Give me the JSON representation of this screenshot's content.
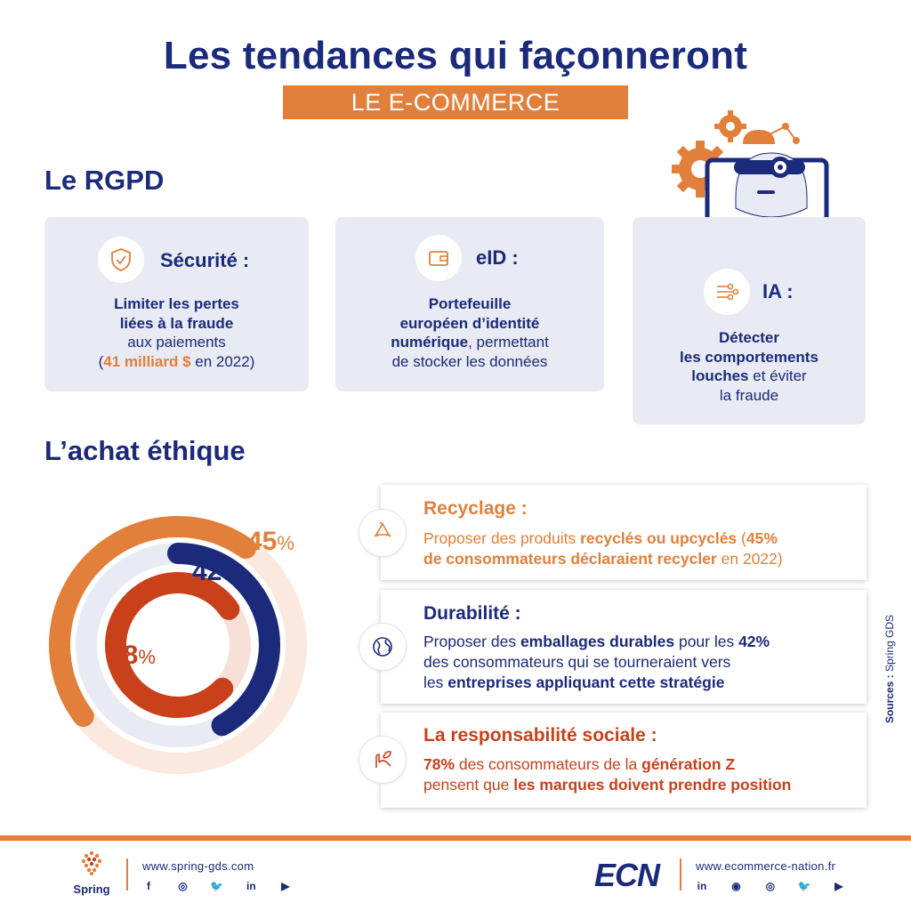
{
  "header": {
    "title": "Les tendances qui façonneront",
    "subtitle": "LE E-COMMERCE"
  },
  "rgpd": {
    "heading": "Le RGPD",
    "cards": [
      {
        "icon": "shield-check-icon",
        "title": "Sécurité :",
        "line1": "Limiter les pertes",
        "line2": "liées à la fraude",
        "line3": "aux paiements",
        "line4_pre": "(",
        "line4_highlight": "41 milliard $",
        "line4_post": " en 2022)"
      },
      {
        "icon": "wallet-icon",
        "title": "eID :",
        "line1": "Portefeuille",
        "line2": "européen d’identité",
        "line3_bold": "numérique",
        "line3_post": ", permettant",
        "line4": "de stocker les données"
      },
      {
        "icon": "circuit-icon",
        "title": "IA :",
        "line1": "Détecter",
        "line2": "les comportements",
        "line3_bold": "louches",
        "line3_post": " et éviter",
        "line4": "la fraude"
      }
    ]
  },
  "ethique": {
    "heading": "L’achat éthique",
    "rings": [
      {
        "value": 45,
        "label": "45",
        "unit": "%",
        "color": "#e27f3a",
        "track": "#fbe9df"
      },
      {
        "value": 42,
        "label": "42",
        "unit": "%",
        "color": "#1b2a7a",
        "track": "#e8ebf3"
      },
      {
        "value": 78,
        "label": "78",
        "unit": "%",
        "color": "#c8411b",
        "track": "#f6e0d8"
      }
    ],
    "items": [
      {
        "icon": "recycle-icon",
        "title": "Recyclage :",
        "l1_a": "Proposer des produits ",
        "l1_b": "recyclés ou upcyclés",
        "l1_c": " (",
        "l1_d": "45%",
        "l2_a": "de consommateurs déclaraient recycler",
        "l2_b": " en 2022)"
      },
      {
        "icon": "globe-icon",
        "title": "Durabilité :",
        "l1_a": "Proposer des ",
        "l1_b": "emballages durables",
        "l1_c": " pour les ",
        "l1_d": "42%",
        "l2": "des consommateurs qui se tourneraient vers",
        "l3_a": "les ",
        "l3_b": "entreprises appliquant cette stratégie"
      },
      {
        "icon": "hand-leaf-icon",
        "title": "La responsabilité sociale :",
        "l1_a": "78%",
        "l1_b": " des consommateurs de la ",
        "l1_c": "génération Z",
        "l2_a": "pensent que ",
        "l2_b": "les marques doivent prendre position"
      }
    ]
  },
  "sources": {
    "label": "Sources :",
    "value": "Spring GDS"
  },
  "footer": {
    "left": {
      "brand": "Spring",
      "url": "www.spring-gds.com",
      "socials": [
        "f",
        "◎",
        "🐦",
        "in",
        "▶"
      ]
    },
    "right": {
      "brand": "ECN",
      "url": "www.ecommerce-nation.fr",
      "socials": [
        "in",
        "◉",
        "◎",
        "🐦",
        "▶"
      ]
    }
  },
  "colors": {
    "navy": "#1b2a7a",
    "orange": "#e27f3a",
    "red": "#c8411b",
    "card": "#e8ebf3"
  }
}
